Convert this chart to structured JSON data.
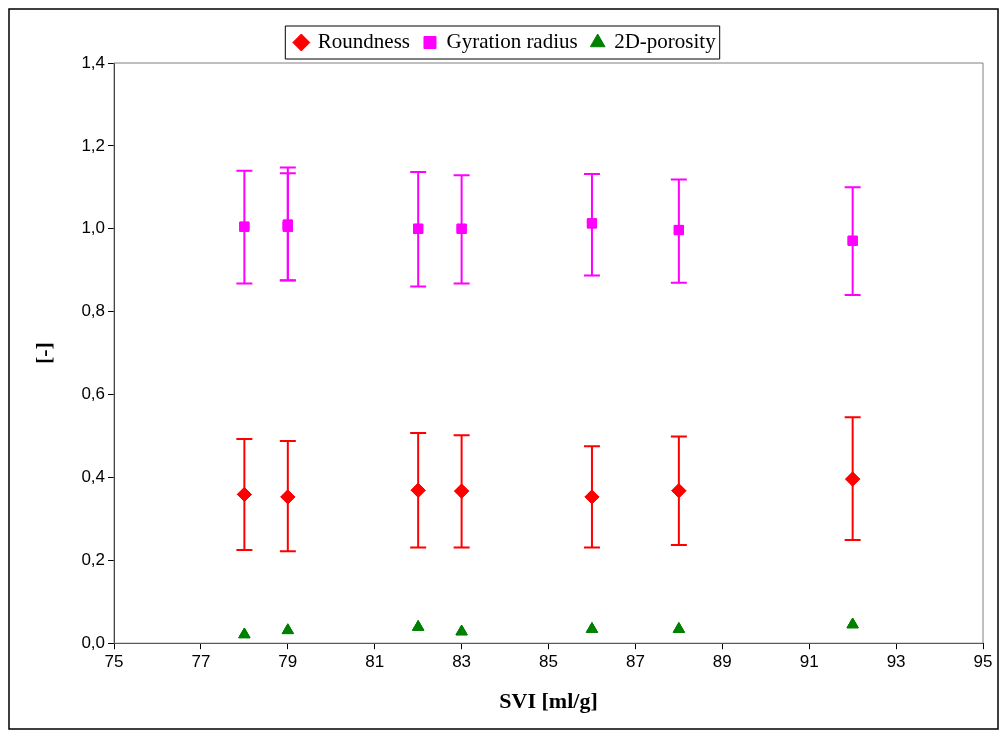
{
  "chart_data": {
    "type": "scatter",
    "xlabel": "SVI [ml/g]",
    "ylabel": "[-]",
    "xlim": [
      75,
      95
    ],
    "xticks": [
      75,
      77,
      79,
      81,
      83,
      85,
      87,
      89,
      91,
      93,
      95
    ],
    "ylim": [
      0,
      1.4
    ],
    "yticks": [
      {
        "value": 0,
        "label": "0,0"
      },
      {
        "value": 0.2,
        "label": "0,2"
      },
      {
        "value": 0.4,
        "label": "0,4"
      },
      {
        "value": 0.6,
        "label": "0,6"
      },
      {
        "value": 0.8,
        "label": "0,8"
      },
      {
        "value": 1.0,
        "label": "1,0"
      },
      {
        "value": 1.2,
        "label": "1,2"
      },
      {
        "value": 1.4,
        "label": "1,4"
      }
    ],
    "grid": false,
    "legend": "top",
    "series": [
      {
        "name": "Roundness",
        "color": "#ff0000",
        "marker": "diamond",
        "x": [
          78,
          79,
          82,
          83,
          86,
          88,
          92
        ],
        "values": [
          0.359,
          0.353,
          0.369,
          0.367,
          0.353,
          0.368,
          0.396
        ],
        "errors": [
          [
            0.225,
            0.493
          ],
          [
            0.222,
            0.488
          ],
          [
            0.231,
            0.507
          ],
          [
            0.231,
            0.502
          ],
          [
            0.231,
            0.475
          ],
          [
            0.237,
            0.499
          ],
          [
            0.249,
            0.545
          ]
        ]
      },
      {
        "name": "Gyration radius",
        "color": "#ff00ff",
        "marker": "square",
        "x": [
          78,
          79,
          79,
          82,
          83,
          86,
          88,
          92
        ],
        "values": [
          1.005,
          1.01,
          1.005,
          1.0,
          1.0,
          1.013,
          0.997,
          0.971
        ],
        "errors": [
          [
            0.868,
            1.14
          ],
          [
            0.876,
            1.148
          ],
          [
            0.875,
            1.134
          ],
          [
            0.861,
            1.137
          ],
          [
            0.868,
            1.129
          ],
          [
            0.887,
            1.132
          ],
          [
            0.87,
            1.119
          ],
          [
            0.84,
            1.1
          ]
        ]
      },
      {
        "name": "2D-porosity",
        "color": "#008000",
        "marker": "triangle",
        "x": [
          78,
          79,
          82,
          83,
          86,
          88,
          92
        ],
        "values": [
          0.021,
          0.031,
          0.039,
          0.028,
          0.034,
          0.034,
          0.045
        ]
      }
    ]
  }
}
